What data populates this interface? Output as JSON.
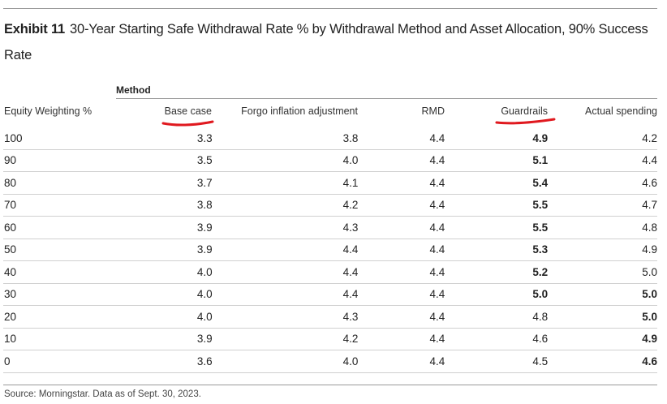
{
  "exhibit": {
    "label": "Exhibit 11",
    "title": "30-Year Starting Safe Withdrawal Rate % by Withdrawal Method and Asset Allocation, 90% Success Rate"
  },
  "method_label": "Method",
  "headers": {
    "equity": "Equity Weighting %",
    "base_case": "Base case",
    "forgo_inflation": "Forgo inflation adjustment",
    "rmd": "RMD",
    "guardrails": "Guardrails",
    "actual_spending": "Actual spending"
  },
  "annotation_color": "#e0191f",
  "rows": [
    {
      "equity": "100",
      "base": "3.3",
      "forgo": "3.8",
      "rmd": "4.4",
      "guardrails": "4.9",
      "actual": "4.2",
      "guardrails_bold": true,
      "actual_bold": false
    },
    {
      "equity": "90",
      "base": "3.5",
      "forgo": "4.0",
      "rmd": "4.4",
      "guardrails": "5.1",
      "actual": "4.4",
      "guardrails_bold": true,
      "actual_bold": false
    },
    {
      "equity": "80",
      "base": "3.7",
      "forgo": "4.1",
      "rmd": "4.4",
      "guardrails": "5.4",
      "actual": "4.6",
      "guardrails_bold": true,
      "actual_bold": false
    },
    {
      "equity": "70",
      "base": "3.8",
      "forgo": "4.2",
      "rmd": "4.4",
      "guardrails": "5.5",
      "actual": "4.7",
      "guardrails_bold": true,
      "actual_bold": false
    },
    {
      "equity": "60",
      "base": "3.9",
      "forgo": "4.3",
      "rmd": "4.4",
      "guardrails": "5.5",
      "actual": "4.8",
      "guardrails_bold": true,
      "actual_bold": false
    },
    {
      "equity": "50",
      "base": "3.9",
      "forgo": "4.4",
      "rmd": "4.4",
      "guardrails": "5.3",
      "actual": "4.9",
      "guardrails_bold": true,
      "actual_bold": false
    },
    {
      "equity": "40",
      "base": "4.0",
      "forgo": "4.4",
      "rmd": "4.4",
      "guardrails": "5.2",
      "actual": "5.0",
      "guardrails_bold": true,
      "actual_bold": false
    },
    {
      "equity": "30",
      "base": "4.0",
      "forgo": "4.4",
      "rmd": "4.4",
      "guardrails": "5.0",
      "actual": "5.0",
      "guardrails_bold": true,
      "actual_bold": true
    },
    {
      "equity": "20",
      "base": "4.0",
      "forgo": "4.3",
      "rmd": "4.4",
      "guardrails": "4.8",
      "actual": "5.0",
      "guardrails_bold": false,
      "actual_bold": true
    },
    {
      "equity": "10",
      "base": "3.9",
      "forgo": "4.2",
      "rmd": "4.4",
      "guardrails": "4.6",
      "actual": "4.9",
      "guardrails_bold": false,
      "actual_bold": true
    },
    {
      "equity": "0",
      "base": "3.6",
      "forgo": "4.0",
      "rmd": "4.4",
      "guardrails": "4.5",
      "actual": "4.6",
      "guardrails_bold": false,
      "actual_bold": true
    }
  ],
  "source": "Source: Morningstar. Data as of Sept. 30, 2023."
}
